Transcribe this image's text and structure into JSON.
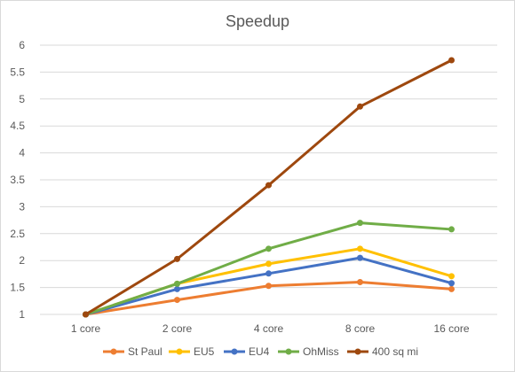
{
  "chart_data": {
    "type": "line",
    "title": "Speedup",
    "categories": [
      "1 core",
      "2 core",
      "4 core",
      "8 core",
      "16 core"
    ],
    "ylim": [
      1,
      6
    ],
    "yticks": [
      "1",
      "1.5",
      "2",
      "2.5",
      "3",
      "3.5",
      "4",
      "4.5",
      "5",
      "5.5",
      "6"
    ],
    "grid": true,
    "legend_position": "bottom",
    "series": [
      {
        "name": "St Paul",
        "color": "#ED7D31",
        "values": [
          1.0,
          1.27,
          1.53,
          1.6,
          1.47
        ]
      },
      {
        "name": "EU5",
        "color": "#FFC000",
        "values": [
          1.0,
          1.57,
          1.94,
          2.22,
          1.71
        ]
      },
      {
        "name": "EU4",
        "color": "#4472C4",
        "values": [
          1.0,
          1.47,
          1.76,
          2.05,
          1.58
        ]
      },
      {
        "name": "OhMiss",
        "color": "#70AD47",
        "values": [
          1.0,
          1.57,
          2.22,
          2.7,
          2.58
        ]
      },
      {
        "name": "400 sq mi",
        "color": "#9E480E",
        "values": [
          1.0,
          2.03,
          3.4,
          4.86,
          5.72
        ]
      }
    ]
  }
}
